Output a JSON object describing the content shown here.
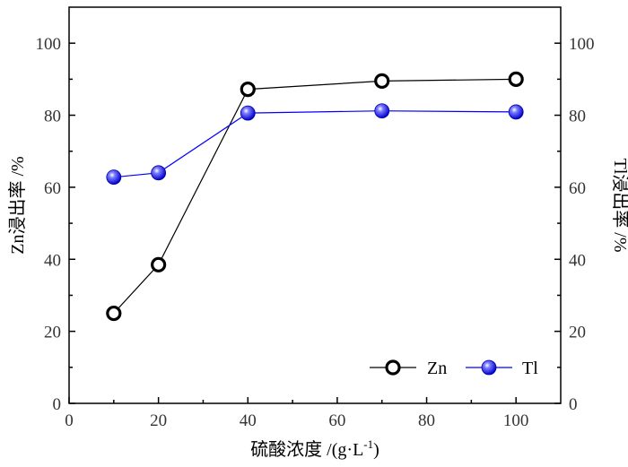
{
  "chart_data": {
    "type": "line",
    "x": [
      10,
      20,
      40,
      70,
      100
    ],
    "series": [
      {
        "name": "Zn",
        "axis": "left",
        "color": "#000000",
        "marker": "open-circle",
        "values": [
          25.0,
          38.5,
          87.2,
          89.5,
          90.0
        ]
      },
      {
        "name": "Tl",
        "axis": "right",
        "color": "#0000ff",
        "marker": "filled-sphere",
        "values": [
          62.8,
          64.0,
          80.6,
          81.2,
          80.9
        ]
      }
    ],
    "xlabel": "硫酸浓度 /(g·L",
    "xlabel_sup": "-1",
    "xlabel_tail": ")",
    "ylabel_left": "Zn浸出率 /%",
    "ylabel_right": "Tl浸出率 /%",
    "xlim": [
      0,
      110
    ],
    "ylim_left": [
      0,
      110
    ],
    "ylim_right": [
      0,
      110
    ],
    "xticks": [
      "0",
      "20",
      "40",
      "60",
      "80",
      "100"
    ],
    "yticks_left": [
      "0",
      "20",
      "40",
      "60",
      "80",
      "100"
    ],
    "yticks_right": [
      "0",
      "20",
      "40",
      "60",
      "80",
      "100"
    ],
    "grid": false,
    "legend_position": "bottom-right"
  }
}
